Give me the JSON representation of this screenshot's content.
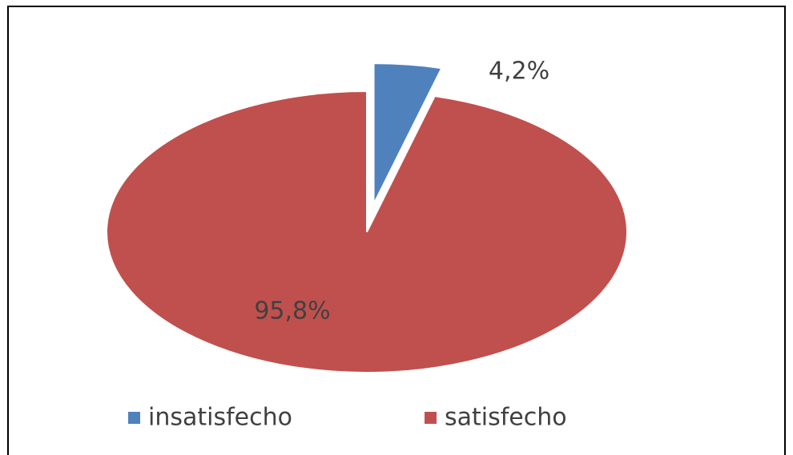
{
  "chart_data": {
    "type": "pie",
    "categories": [
      "insatisfecho",
      "satisfecho"
    ],
    "values": [
      4.2,
      95.8
    ],
    "value_labels": [
      "4,2%",
      "95,8%"
    ],
    "colors": [
      "#4f81bd",
      "#c0504d"
    ],
    "legend": "bottom"
  }
}
